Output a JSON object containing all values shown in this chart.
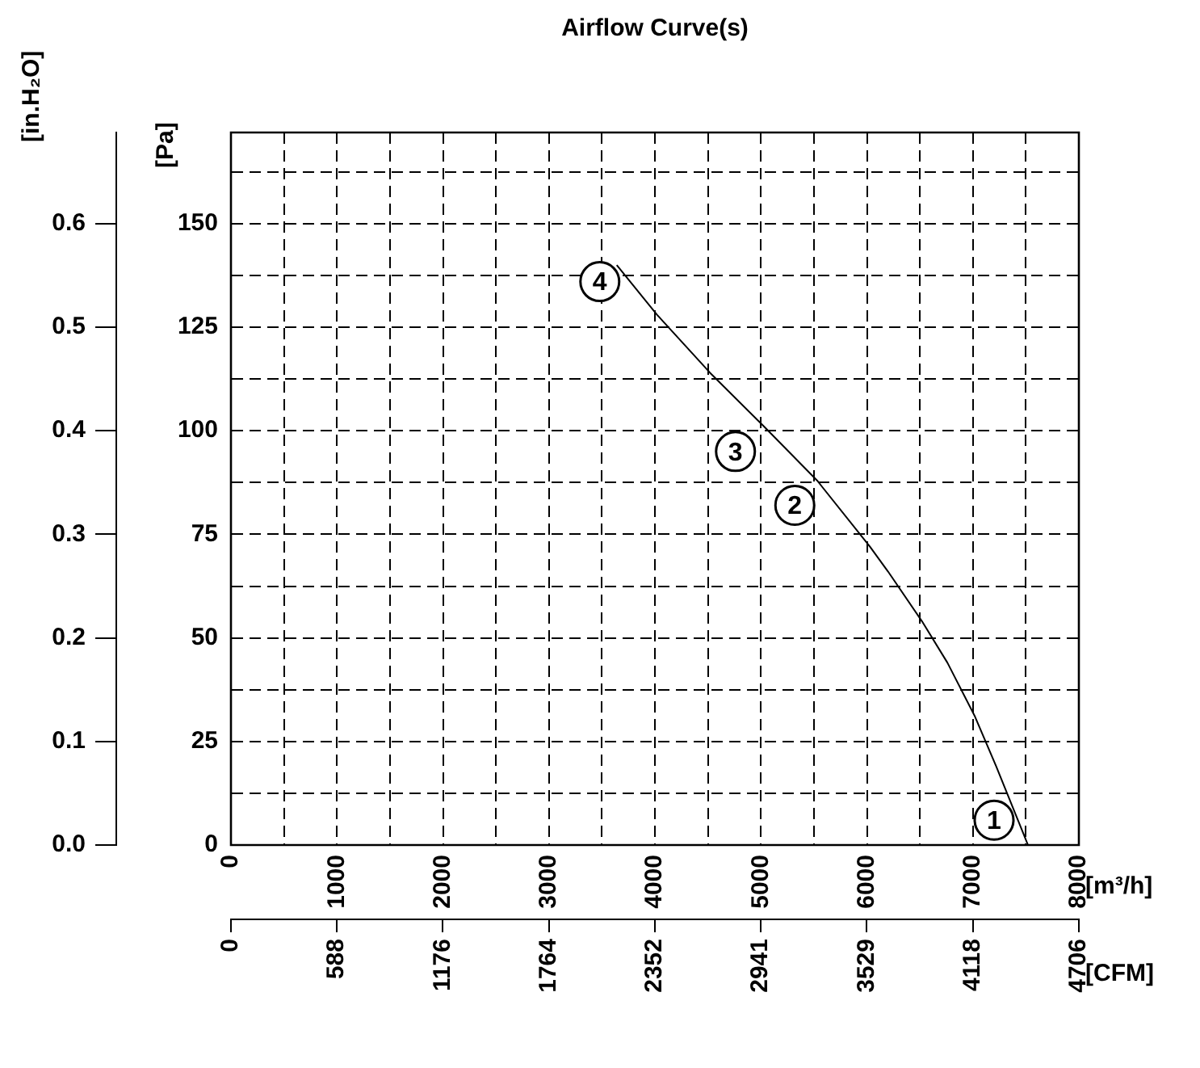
{
  "chart_data": {
    "type": "line",
    "title": "Airflow Curve(s)",
    "xlabel": "[m³/h]",
    "ylabel": "[Pa]",
    "y2label": "[in.H₂O]",
    "x2label": "[CFM]",
    "x": [
      3640,
      4020,
      4520,
      5030,
      5530,
      6030,
      6200,
      6520,
      6760,
      7020,
      7220,
      7520
    ],
    "series": [
      {
        "color": "#000000",
        "values": [
          140,
          128,
          114,
          101,
          88,
          72,
          66,
          54,
          44,
          31,
          19,
          0
        ]
      }
    ],
    "xlim": [
      0,
      8000
    ],
    "xticks": [
      0,
      {
        "value": 500,
        "label": null
      },
      1000,
      {
        "value": 1500,
        "label": null
      },
      2000,
      {
        "value": 2500,
        "label": null
      },
      3000,
      {
        "value": 3500,
        "label": null
      },
      4000,
      {
        "value": 4500,
        "label": null
      },
      5000,
      {
        "value": 5500,
        "label": null
      },
      6000,
      {
        "value": 6500,
        "label": null
      },
      7000,
      {
        "value": 7500,
        "label": null
      },
      8000
    ],
    "ylim": [
      0,
      172
    ],
    "yticks": [
      0,
      {
        "value": 12.5,
        "label": null
      },
      25,
      {
        "value": 37.5,
        "label": null
      },
      50,
      {
        "value": 62.5,
        "label": null
      },
      75,
      {
        "value": 87.5,
        "label": null
      },
      100,
      {
        "value": 112.5,
        "label": null
      },
      125,
      {
        "value": 137.5,
        "label": null
      },
      150,
      {
        "value": 162.5,
        "label": null
      }
    ],
    "y2lim": [
      0,
      0.688
    ],
    "y2ticks": [
      {
        "value": 0,
        "label": "0.0"
      },
      0.1,
      0.2,
      0.3,
      0.4,
      0.5,
      0.6
    ],
    "x2lim": [
      0,
      4706
    ],
    "x2ticks": [
      0,
      588,
      1176,
      1764,
      2352,
      2941,
      3529,
      4118,
      4706
    ],
    "grid": true,
    "legend": false,
    "marker": "none",
    "line_style": "solid",
    "annotations": [
      {
        "text": "1",
        "x": 7200,
        "y": 6
      },
      {
        "text": "2",
        "x": 5320,
        "y": 82
      },
      {
        "text": "3",
        "x": 4760,
        "y": 95
      },
      {
        "text": "4",
        "x": 3480,
        "y": 136
      }
    ]
  }
}
